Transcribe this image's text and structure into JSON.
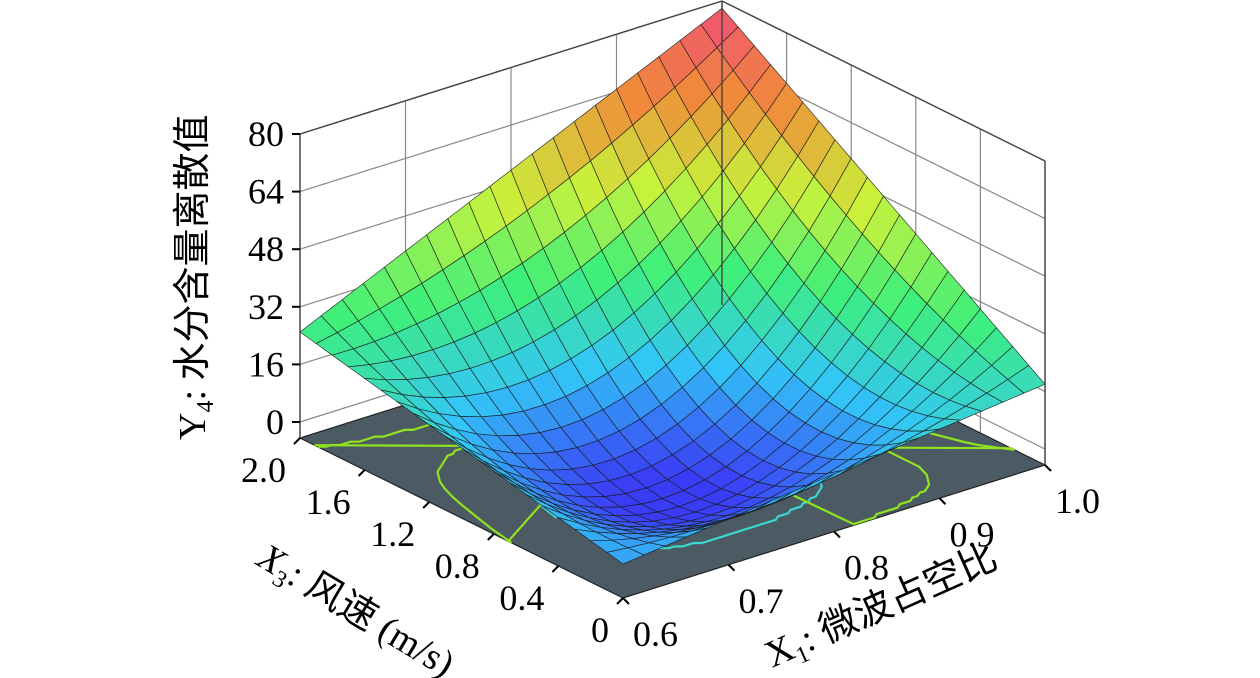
{
  "chart_data": {
    "type": "surface3d",
    "title": "",
    "x_axis": {
      "title_main": "X",
      "title_sub": "1",
      "title_rest": ": 微波占空比",
      "ticks": [
        "0.6",
        "0.7",
        "0.8",
        "0.9",
        "1.0"
      ],
      "range": [
        0.6,
        1.0
      ]
    },
    "y_axis": {
      "title_main": "X",
      "title_sub": "3",
      "title_rest": ": 风速 (m/s)",
      "ticks": [
        "0",
        "0.4",
        "0.8",
        "1.2",
        "1.6",
        "2.0"
      ],
      "range": [
        0,
        2.0
      ]
    },
    "z_axis": {
      "title_main": "Y",
      "title_sub": "4",
      "title_rest": ": 水分含量离散值",
      "ticks": [
        "0",
        "16",
        "32",
        "48",
        "64",
        "80"
      ],
      "range": [
        0,
        80
      ]
    },
    "surface_corners": [
      {
        "x1": 0.6,
        "x3": 0,
        "z": 5
      },
      {
        "x1": 1.0,
        "x3": 0,
        "z": 18
      },
      {
        "x1": 1.0,
        "x3": 2.0,
        "z": 78
      },
      {
        "x1": 0.6,
        "x3": 2.0,
        "z": 25
      }
    ],
    "surface_minimum": {
      "x1": 0.8,
      "x3": 0.9,
      "z": -7
    },
    "grid_lines_per_axis": 21,
    "colormap": [
      "#3a3cf5",
      "#33c6f7",
      "#3ef07a",
      "#c9f23a",
      "#f08a3a",
      "#f0487e"
    ],
    "floor_color": "#4c5a63",
    "contour_colors": [
      "#3bd6d0",
      "#8fe31f"
    ]
  }
}
